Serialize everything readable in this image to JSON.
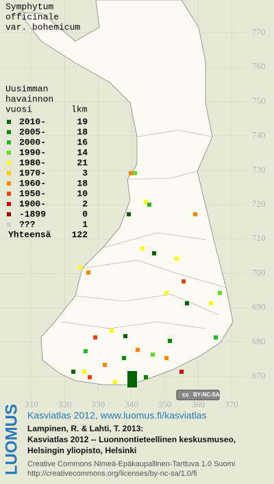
{
  "map": {
    "title": [
      "Symphytum",
      "officinale",
      "var. bohemicum"
    ],
    "legend": {
      "header": [
        "Uusimman",
        "havainnon"
      ],
      "year_heading": "vuosi",
      "count_heading": "lkm",
      "rows": [
        {
          "label": "2010-",
          "count": 19,
          "color": "#006400"
        },
        {
          "label": "2005-",
          "count": 18,
          "color": "#008a00"
        },
        {
          "label": "2000-",
          "count": 16,
          "color": "#22bb22"
        },
        {
          "label": "1990-",
          "count": 14,
          "color": "#66dd22"
        },
        {
          "label": "1980-",
          "count": 21,
          "color": "#ffff00"
        },
        {
          "label": "1970-",
          "count": 3,
          "color": "#ffcc00"
        },
        {
          "label": "1960-",
          "count": 18,
          "color": "#ff8800"
        },
        {
          "label": "1950-",
          "count": 10,
          "color": "#ee4400"
        },
        {
          "label": "1900-",
          "count": 2,
          "color": "#cc0000"
        },
        {
          "label": "-1899",
          "count": 0,
          "color": "#990000"
        },
        {
          "label": "???",
          "count": 1,
          "color": "#cccccc"
        }
      ],
      "total_label": "Yhteensä",
      "total": 122
    },
    "yticks": [
      770,
      760,
      750,
      740,
      730,
      720,
      710,
      700,
      690,
      680,
      670
    ],
    "xticks": [
      310,
      320,
      330,
      340,
      350,
      360,
      370
    ],
    "badge": "BY-NC-SA",
    "badge_cc": "cc"
  },
  "footer": {
    "logo": "LUOMUS",
    "heading": "Kasviatlas 2012, www.luomus.fi/kasviatlas",
    "citation": [
      "Lampinen, R. & Lahti, T. 2013:",
      "Kasviatlas 2012 -- Luonnontieteellinen keskusmuseo,",
      "Helsingin yliopisto, Helsinki"
    ],
    "license": [
      "Creative Commons Nimeä-Epäkaupallinen-Tarttuva 1.0 Suomi",
      "http://creativecommons.org/licenses/by-nc-sa/1.0/fi"
    ]
  }
}
